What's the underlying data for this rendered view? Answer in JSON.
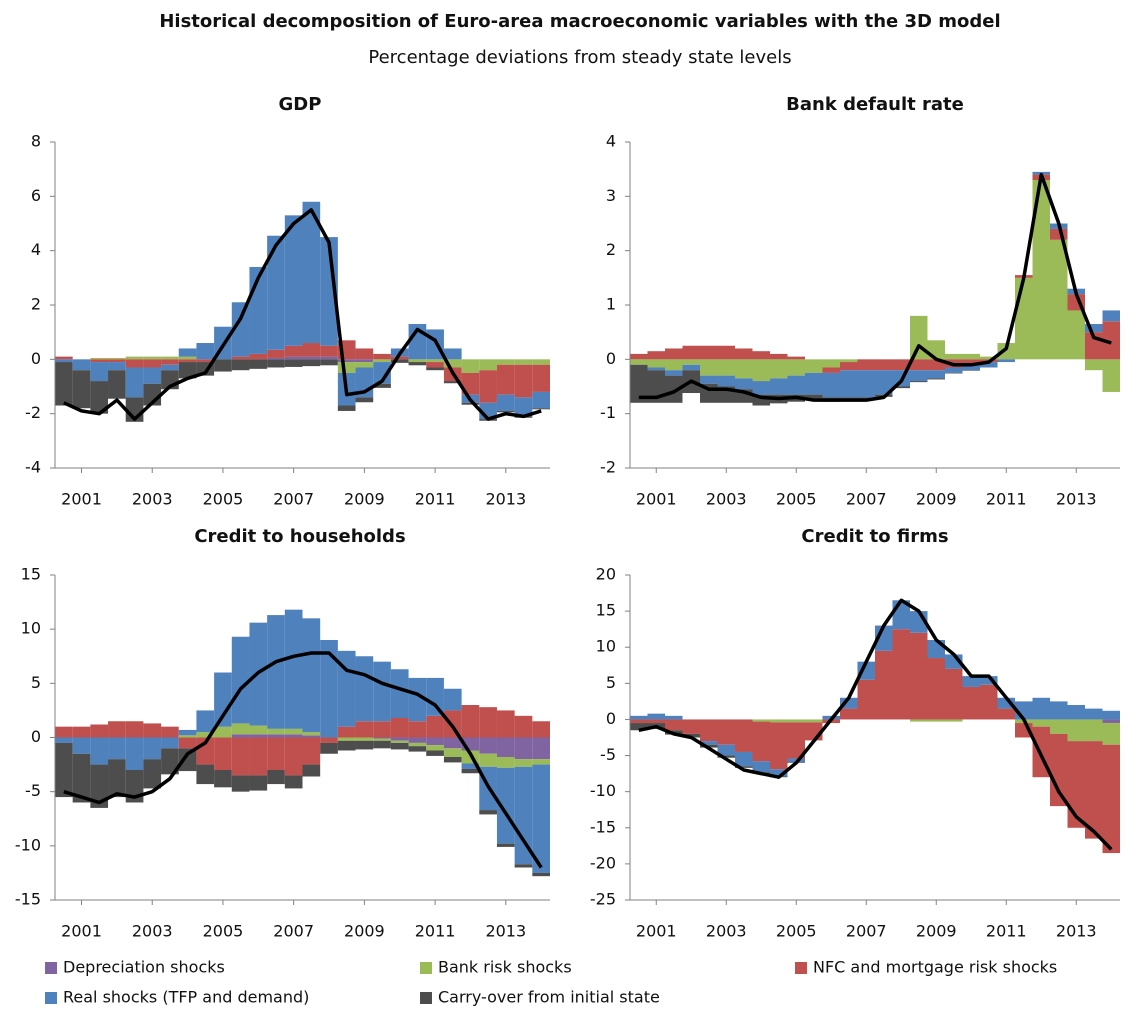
{
  "title": "Historical decomposition of Euro-area macroeconomic variables with the 3D model",
  "subtitle": "Percentage deviations from steady state levels",
  "legend": [
    {
      "name": "Depreciation shocks",
      "color": "#8064a2"
    },
    {
      "name": "Bank risk shocks",
      "color": "#9bbb59"
    },
    {
      "name": "NFC and mortgage risk shocks",
      "color": "#c0504d"
    },
    {
      "name": "Real shocks (TFP and demand)",
      "color": "#4f81bd"
    },
    {
      "name": "Carry-over from initial state",
      "color": "#4d4d4d"
    }
  ],
  "chart_data": [
    {
      "type": "bar",
      "title": "GDP",
      "x": [
        2000.5,
        2001,
        2001.5,
        2002,
        2002.5,
        2003,
        2003.5,
        2004,
        2004.5,
        2005,
        2005.5,
        2006,
        2006.5,
        2007,
        2007.5,
        2008,
        2008.5,
        2009,
        2009.5,
        2010,
        2010.5,
        2011,
        2011.5,
        2012,
        2012.5,
        2013,
        2013.5,
        2014
      ],
      "xlim": [
        2000.25,
        2014.25
      ],
      "xticks": [
        2001,
        2003,
        2005,
        2007,
        2009,
        2011,
        2013
      ],
      "ylim": [
        -4,
        8
      ],
      "yticks": [
        -4,
        -2,
        0,
        2,
        4,
        6,
        8
      ],
      "series": [
        {
          "values": [
            0,
            0,
            0,
            0,
            0,
            0,
            0,
            0,
            0,
            0,
            0,
            0,
            0.05,
            0.1,
            0.1,
            0.1,
            -0.1,
            -0.1,
            0,
            0,
            0,
            0,
            0,
            0,
            0,
            0,
            0,
            0
          ]
        },
        {
          "values": [
            0,
            0,
            0.05,
            0.05,
            0.1,
            0.1,
            0.1,
            0.1,
            0,
            0,
            0,
            0,
            0,
            0,
            0,
            0,
            -0.4,
            -0.2,
            -0.1,
            0,
            -0.1,
            -0.1,
            -0.3,
            -0.5,
            -0.4,
            -0.2,
            -0.2,
            -0.2
          ]
        },
        {
          "values": [
            0.1,
            0,
            -0.1,
            -0.1,
            -0.3,
            -0.3,
            -0.2,
            -0.1,
            -0.1,
            0,
            0.1,
            0.2,
            0.3,
            0.4,
            0.5,
            0.4,
            0.7,
            0.4,
            0.2,
            0.1,
            0,
            -0.2,
            -0.5,
            -0.8,
            -1.2,
            -1.1,
            -1.2,
            -1.0
          ]
        },
        {
          "values": [
            -0.1,
            -0.4,
            -0.7,
            -0.3,
            -1.1,
            -0.6,
            -0.2,
            0.3,
            0.6,
            1.2,
            2.0,
            3.2,
            4.2,
            4.8,
            5.2,
            4.0,
            -1.2,
            -1.1,
            -0.8,
            0.3,
            1.3,
            1.1,
            0.4,
            -0.3,
            -0.6,
            -0.6,
            -0.7,
            -0.6
          ]
        },
        {
          "values": [
            -1.6,
            -1.4,
            -1.2,
            -1.05,
            -0.9,
            -0.8,
            -0.7,
            -0.6,
            -0.5,
            -0.45,
            -0.4,
            -0.35,
            -0.3,
            -0.28,
            -0.25,
            -0.22,
            -0.2,
            -0.18,
            -0.15,
            -0.13,
            -0.12,
            -0.1,
            -0.08,
            -0.07,
            -0.06,
            -0.05,
            -0.05,
            -0.04
          ]
        }
      ],
      "line": {
        "color": "#000000",
        "values": [
          -1.6,
          -1.9,
          -2.0,
          -1.5,
          -2.2,
          -1.6,
          -1.0,
          -0.7,
          -0.5,
          0.5,
          1.5,
          3.0,
          4.2,
          5.0,
          5.5,
          4.3,
          -1.3,
          -1.2,
          -0.8,
          0.2,
          1.1,
          0.7,
          -0.5,
          -1.5,
          -2.2,
          -2.0,
          -2.1,
          -1.9
        ]
      }
    },
    {
      "type": "bar",
      "title": "Bank default rate",
      "x": [
        2000.5,
        2001,
        2001.5,
        2002,
        2002.5,
        2003,
        2003.5,
        2004,
        2004.5,
        2005,
        2005.5,
        2006,
        2006.5,
        2007,
        2007.5,
        2008,
        2008.5,
        2009,
        2009.5,
        2010,
        2010.5,
        2011,
        2011.5,
        2012,
        2012.5,
        2013,
        2013.5,
        2014
      ],
      "xlim": [
        2000.25,
        2014.25
      ],
      "xticks": [
        2001,
        2003,
        2005,
        2007,
        2009,
        2011,
        2013
      ],
      "ylim": [
        -2,
        4
      ],
      "yticks": [
        -2,
        -1,
        0,
        1,
        2,
        3,
        4
      ],
      "series": [
        {
          "values": [
            0,
            0,
            0,
            0,
            0,
            0,
            0,
            0,
            0,
            0,
            0,
            0,
            0,
            0,
            0,
            0,
            0,
            0,
            0,
            0,
            0,
            0,
            0,
            0,
            0,
            0,
            0,
            0
          ]
        },
        {
          "values": [
            -0.1,
            -0.15,
            -0.2,
            -0.1,
            -0.3,
            -0.3,
            -0.35,
            -0.4,
            -0.35,
            -0.3,
            -0.25,
            -0.15,
            -0.05,
            0,
            0,
            0,
            0.8,
            0.35,
            0.1,
            0.1,
            0.05,
            0.3,
            1.5,
            3.3,
            2.2,
            0.9,
            -0.2,
            -0.6
          ]
        },
        {
          "values": [
            0.1,
            0.15,
            0.2,
            0.25,
            0.25,
            0.25,
            0.2,
            0.15,
            0.1,
            0.05,
            0,
            -0.1,
            -0.15,
            -0.2,
            -0.2,
            -0.2,
            -0.2,
            -0.2,
            -0.15,
            -0.1,
            -0.05,
            0,
            0.05,
            0.1,
            0.2,
            0.3,
            0.5,
            0.7
          ]
        },
        {
          "values": [
            0,
            -0.05,
            -0.1,
            -0.1,
            -0.15,
            -0.2,
            -0.2,
            -0.25,
            -0.3,
            -0.35,
            -0.4,
            -0.45,
            -0.5,
            -0.5,
            -0.45,
            -0.3,
            -0.2,
            -0.15,
            -0.1,
            -0.1,
            -0.1,
            -0.05,
            0,
            0.05,
            0.1,
            0.1,
            0.15,
            0.2
          ]
        },
        {
          "values": [
            -0.7,
            -0.6,
            -0.5,
            -0.42,
            -0.35,
            -0.3,
            -0.25,
            -0.2,
            -0.16,
            -0.13,
            -0.1,
            -0.08,
            -0.06,
            -0.05,
            -0.04,
            -0.03,
            -0.02,
            -0.02,
            -0.01,
            -0.01,
            0,
            0,
            0,
            0,
            0,
            0,
            0,
            0
          ]
        }
      ],
      "line": {
        "color": "#000000",
        "values": [
          -0.7,
          -0.7,
          -0.6,
          -0.4,
          -0.55,
          -0.55,
          -0.6,
          -0.7,
          -0.72,
          -0.7,
          -0.75,
          -0.75,
          -0.75,
          -0.75,
          -0.7,
          -0.4,
          0.25,
          0.0,
          -0.1,
          -0.1,
          -0.05,
          0.2,
          1.5,
          3.4,
          2.5,
          1.2,
          0.4,
          0.3
        ]
      }
    },
    {
      "type": "bar",
      "title": "Credit to households",
      "x": [
        2000.5,
        2001,
        2001.5,
        2002,
        2002.5,
        2003,
        2003.5,
        2004,
        2004.5,
        2005,
        2005.5,
        2006,
        2006.5,
        2007,
        2007.5,
        2008,
        2008.5,
        2009,
        2009.5,
        2010,
        2010.5,
        2011,
        2011.5,
        2012,
        2012.5,
        2013,
        2013.5,
        2014
      ],
      "xlim": [
        2000.25,
        2014.25
      ],
      "xticks": [
        2001,
        2003,
        2005,
        2007,
        2009,
        2011,
        2013
      ],
      "ylim": [
        -15,
        15
      ],
      "yticks": [
        -15,
        -10,
        -5,
        0,
        5,
        10,
        15
      ],
      "series": [
        {
          "values": [
            0,
            0,
            0,
            0,
            0,
            0,
            0,
            0,
            0,
            0,
            0.3,
            0.3,
            0.3,
            0.3,
            0.2,
            0,
            0,
            0,
            -0.1,
            -0.3,
            -0.5,
            -0.7,
            -1,
            -1.2,
            -1.5,
            -1.8,
            -2,
            -2
          ]
        },
        {
          "values": [
            0,
            0,
            0,
            0,
            0,
            0,
            0,
            0.2,
            0.5,
            1,
            1,
            0.8,
            0.5,
            0.5,
            0.3,
            0,
            -0.3,
            -0.3,
            -0.2,
            -0.2,
            -0.3,
            -0.5,
            -0.8,
            -1.2,
            -1.2,
            -1,
            -0.7,
            -0.5
          ]
        },
        {
          "values": [
            1,
            1,
            1.2,
            1.5,
            1.5,
            1.3,
            1,
            -1,
            -2.5,
            -3,
            -3.5,
            -3.5,
            -3,
            -3.5,
            -2.5,
            -0.5,
            1,
            1.5,
            1.5,
            1.8,
            1.5,
            2,
            2.5,
            3,
            2.8,
            2.5,
            2,
            1.5
          ]
        },
        {
          "values": [
            -0.5,
            -1.5,
            -2.5,
            -2,
            -3,
            -2,
            -1,
            0.5,
            2,
            5,
            8,
            9.5,
            10.5,
            11,
            10.5,
            9,
            7,
            6,
            5.5,
            4.5,
            4,
            3.5,
            2,
            -0.5,
            -4,
            -7,
            -9,
            -10
          ]
        },
        {
          "values": [
            -5,
            -4.5,
            -4,
            -3.5,
            -3,
            -2.7,
            -2.4,
            -2.1,
            -1.8,
            -1.6,
            -1.5,
            -1.4,
            -1.3,
            -1.2,
            -1.1,
            -1,
            -0.9,
            -0.8,
            -0.7,
            -0.6,
            -0.5,
            -0.5,
            -0.5,
            -0.4,
            -0.4,
            -0.3,
            -0.3,
            -0.3
          ]
        }
      ],
      "line": {
        "color": "#000000",
        "values": [
          -5,
          -5.5,
          -6,
          -5.2,
          -5.5,
          -5,
          -3.8,
          -1.5,
          -0.5,
          2,
          4.5,
          6,
          7,
          7.5,
          7.8,
          7.8,
          6.2,
          5.8,
          5,
          4.5,
          4,
          3,
          1,
          -1.5,
          -4.5,
          -7,
          -9.5,
          -12
        ]
      }
    },
    {
      "type": "bar",
      "title": "Credit to firms",
      "x": [
        2000.5,
        2001,
        2001.5,
        2002,
        2002.5,
        2003,
        2003.5,
        2004,
        2004.5,
        2005,
        2005.5,
        2006,
        2006.5,
        2007,
        2007.5,
        2008,
        2008.5,
        2009,
        2009.5,
        2010,
        2010.5,
        2011,
        2011.5,
        2012,
        2012.5,
        2013,
        2013.5,
        2014
      ],
      "xlim": [
        2000.25,
        2014.25
      ],
      "xticks": [
        2001,
        2003,
        2005,
        2007,
        2009,
        2011,
        2013
      ],
      "ylim": [
        -25,
        20
      ],
      "yticks": [
        -25,
        -20,
        -15,
        -10,
        -5,
        0,
        5,
        10,
        15,
        20
      ],
      "series": [
        {
          "values": [
            0,
            0,
            0,
            0,
            0,
            0,
            0,
            0,
            0,
            0,
            0,
            0,
            0,
            0,
            0,
            0,
            0,
            0,
            0,
            0,
            0,
            0,
            0,
            0,
            0,
            0,
            0,
            -0.5
          ]
        },
        {
          "values": [
            0,
            0,
            0,
            0,
            0,
            0,
            0,
            -0.3,
            -0.4,
            -0.4,
            -0.4,
            0,
            0,
            0,
            0,
            0,
            -0.3,
            -0.3,
            -0.3,
            0,
            0,
            0,
            -0.5,
            -1,
            -2,
            -3,
            -3,
            -3
          ]
        },
        {
          "values": [
            -0.5,
            -0.5,
            -1.5,
            -2,
            -3,
            -3.5,
            -4.5,
            -5.5,
            -6.5,
            -5,
            -2.5,
            -0.5,
            1.5,
            5.5,
            9.5,
            12.5,
            12,
            8.5,
            7,
            4.5,
            4.8,
            1.5,
            -2,
            -7,
            -10,
            -12,
            -13.5,
            -15
          ]
        },
        {
          "values": [
            0.5,
            0.8,
            0.5,
            0,
            -0.5,
            -1.5,
            -2,
            -1.5,
            -1,
            -0.5,
            0,
            0.5,
            1.5,
            2.5,
            3.5,
            4,
            3,
            2.5,
            2,
            1.5,
            1.2,
            1.5,
            2.5,
            3,
            2.5,
            2,
            1.5,
            1.2
          ]
        },
        {
          "values": [
            -1,
            -0.8,
            -0.6,
            -0.5,
            -0.4,
            -0.3,
            -0.2,
            -0.2,
            -0.1,
            -0.1,
            0,
            0,
            0,
            0,
            0,
            0,
            0,
            0,
            0,
            0,
            0,
            0,
            0,
            0,
            0,
            0,
            0,
            0
          ]
        }
      ],
      "line": {
        "color": "#000000",
        "values": [
          -1.5,
          -1,
          -2,
          -2.5,
          -4,
          -5.5,
          -7,
          -7.5,
          -8,
          -6,
          -3,
          0,
          3,
          8,
          13,
          16.5,
          15,
          11,
          9,
          6,
          6,
          3,
          0,
          -5,
          -10,
          -13.5,
          -15.5,
          -18
        ]
      }
    }
  ]
}
